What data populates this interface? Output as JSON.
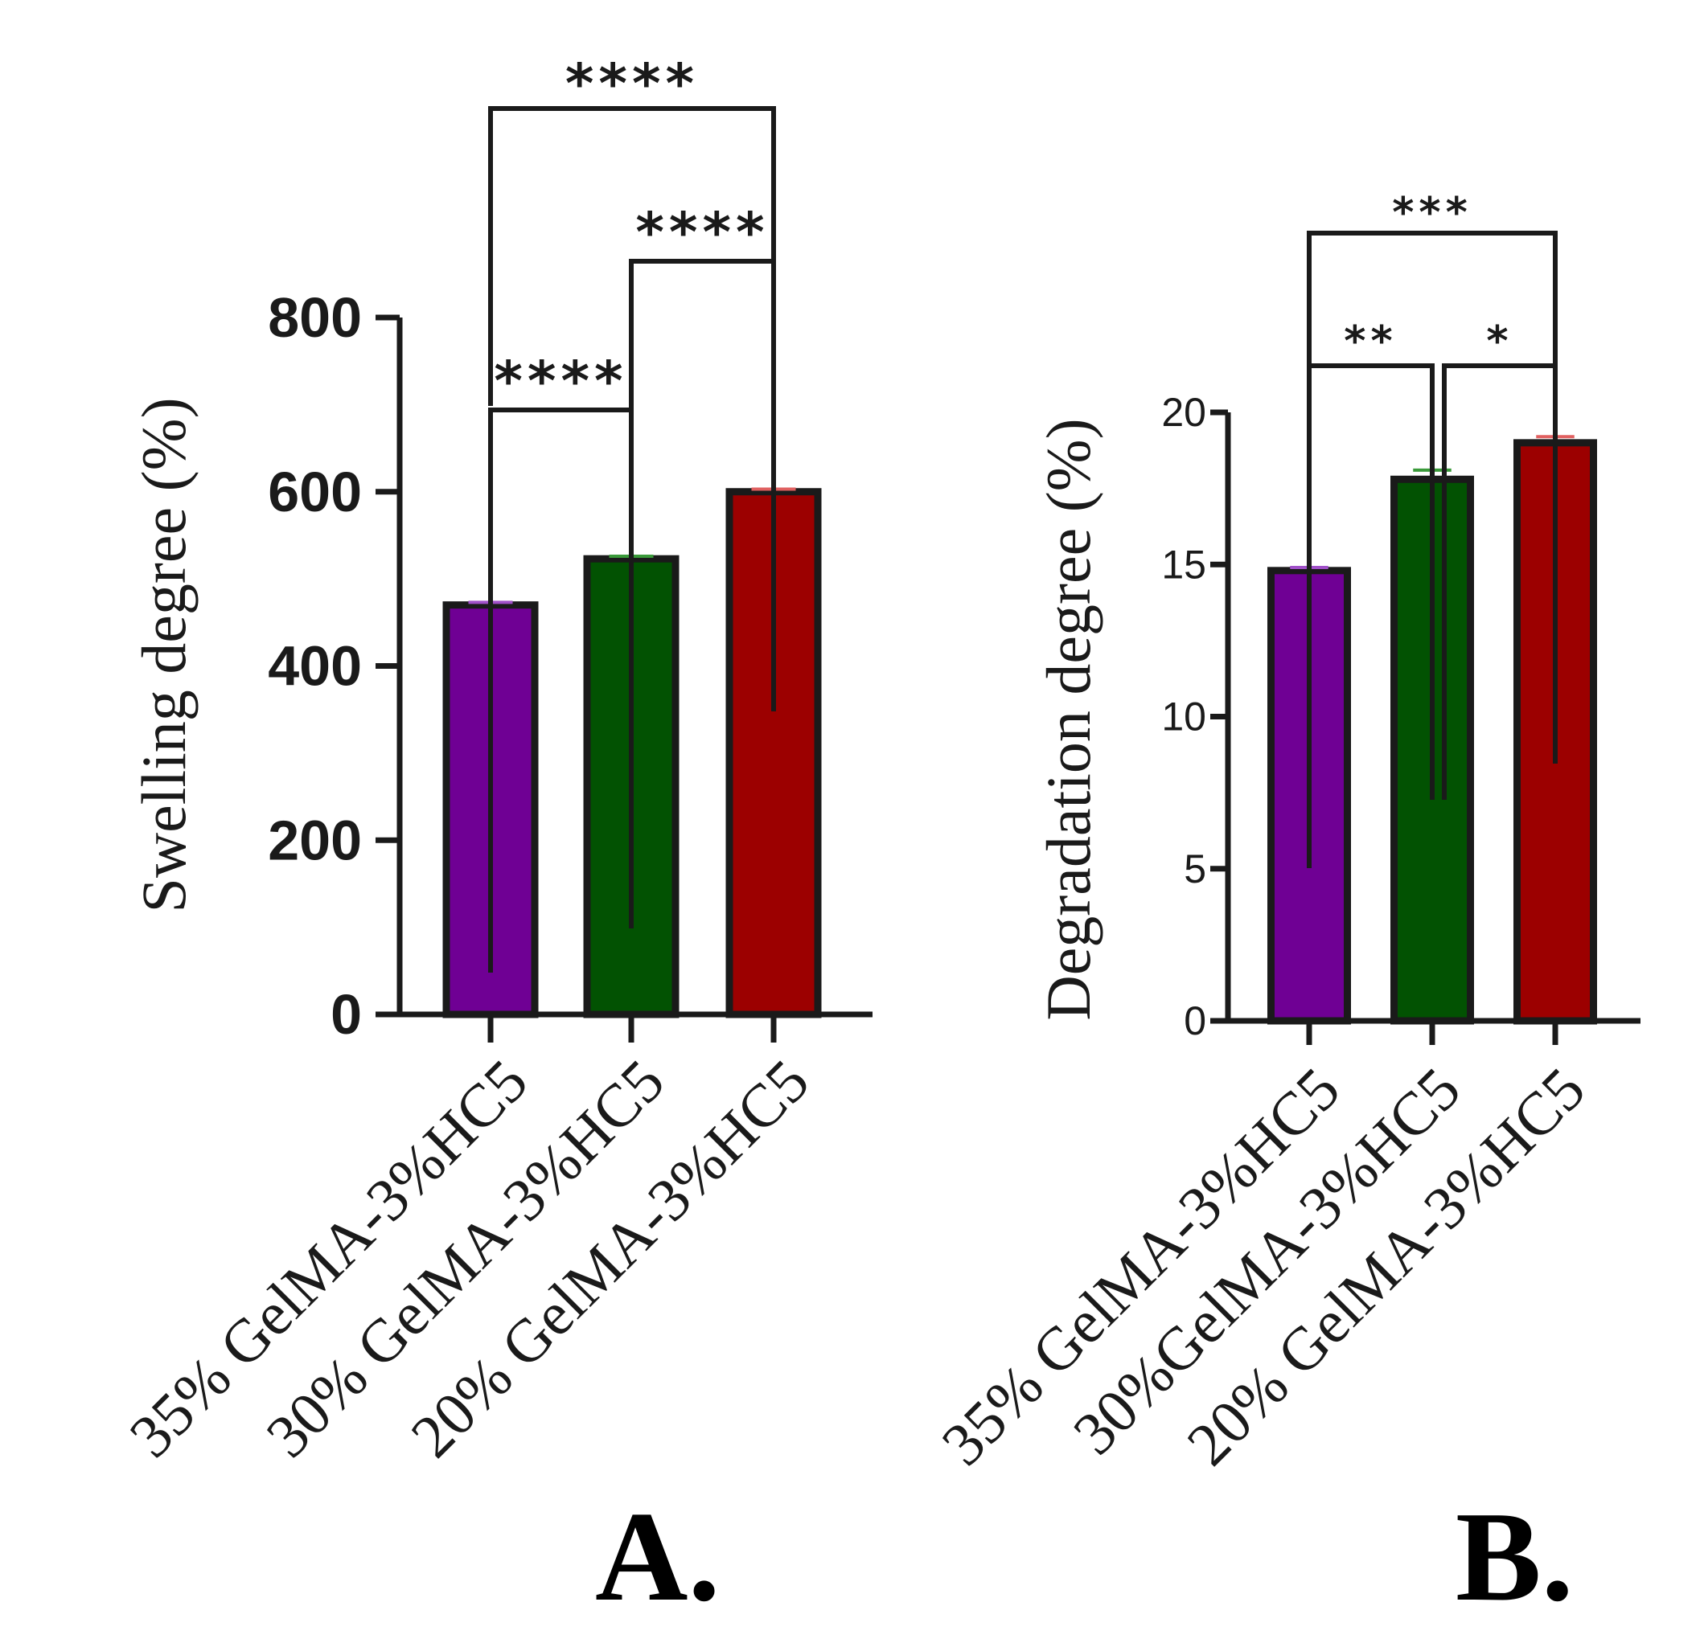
{
  "chart_data": [
    {
      "type": "bar",
      "panel_label": "A.",
      "ylabel": "Swelling degree (%)",
      "xlabel": "",
      "ylim": [
        0,
        800
      ],
      "yticks": [
        0,
        200,
        400,
        600,
        800
      ],
      "categories": [
        "35% GelMA-3%HC5",
        "30% GelMA-3%HC5",
        "20% GelMA-3%HC5"
      ],
      "values": [
        470,
        523,
        600
      ],
      "errors": [
        3,
        3,
        3
      ],
      "colors": [
        "#6f0094",
        "#025202",
        "#9c0000"
      ],
      "error_colors": [
        "#a050c8",
        "#3a9a3a",
        "#e06060"
      ],
      "significance": [
        {
          "from": 0,
          "to": 2,
          "label": "****"
        },
        {
          "from": 1,
          "to": 2,
          "label": "****"
        },
        {
          "from": 0,
          "to": 1,
          "label": "****"
        }
      ]
    },
    {
      "type": "bar",
      "panel_label": "B.",
      "ylabel": "Degradation degree (%)",
      "xlabel": "",
      "ylim": [
        0,
        20
      ],
      "yticks": [
        0,
        5,
        10,
        15,
        20
      ],
      "categories": [
        "35% GelMA-3%HC5",
        "30%GelMA-3%HC5",
        "20% GelMA-3%HC5"
      ],
      "values": [
        14.8,
        17.8,
        19.0
      ],
      "errors": [
        0.1,
        0.3,
        0.2
      ],
      "colors": [
        "#6f0094",
        "#025202",
        "#9c0000"
      ],
      "error_colors": [
        "#a050c8",
        "#3a9a3a",
        "#e06060"
      ],
      "significance": [
        {
          "from": 0,
          "to": 2,
          "label": "***"
        },
        {
          "from": 0,
          "to": 1,
          "label": "**"
        },
        {
          "from": 1,
          "to": 2,
          "label": "*"
        }
      ]
    }
  ]
}
